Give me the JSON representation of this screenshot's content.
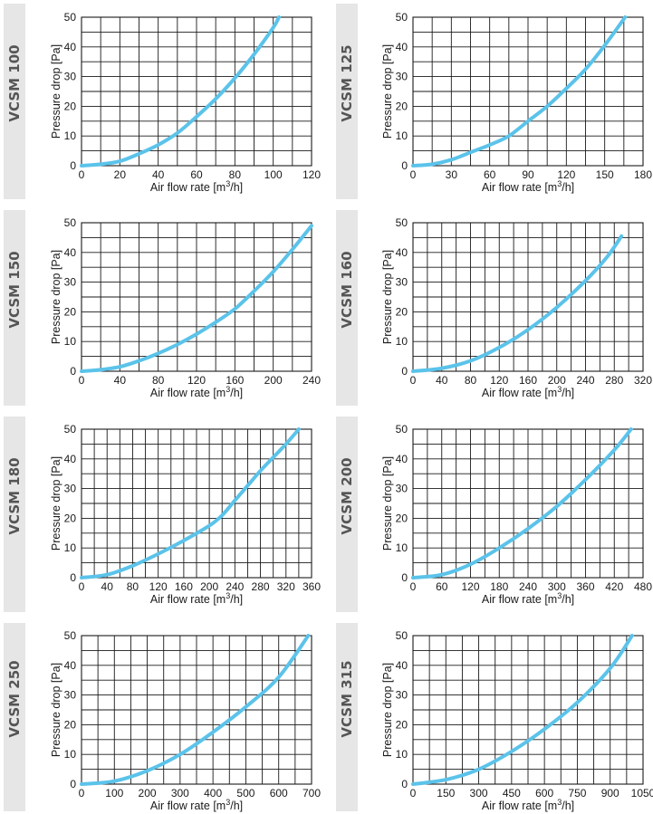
{
  "chart_data": [
    {
      "type": "line",
      "panel_label": "VCSM 100",
      "xlabel": "Air flow rate [m3/h]",
      "ylabel": "Pressure drop [Pa]",
      "xlim": [
        0,
        120
      ],
      "ylim": [
        0,
        50
      ],
      "xticks": [
        0,
        20,
        40,
        60,
        80,
        100,
        120
      ],
      "x_grid_step": 10,
      "yticks": [
        0,
        10,
        20,
        30,
        40,
        50
      ],
      "y_grid_step": 5,
      "grid": true,
      "series": [
        {
          "color": "#5bc3ea",
          "x": [
            0,
            10,
            20,
            30,
            40,
            50,
            60,
            70,
            80,
            90,
            100,
            103
          ],
          "y": [
            0,
            0.5,
            1.5,
            4,
            7,
            11,
            16.5,
            22.5,
            29.5,
            37.5,
            46.5,
            50
          ]
        }
      ]
    },
    {
      "type": "line",
      "panel_label": "VCSM 125",
      "xlabel": "Air flow rate [m3/h]",
      "ylabel": "Pressure drop [Pa]",
      "xlim": [
        0,
        180
      ],
      "ylim": [
        0,
        50
      ],
      "xticks": [
        0,
        30,
        60,
        90,
        120,
        150,
        180
      ],
      "x_grid_step": 15,
      "yticks": [
        0,
        10,
        20,
        30,
        40,
        50
      ],
      "y_grid_step": 5,
      "grid": true,
      "series": [
        {
          "color": "#5bc3ea",
          "x": [
            0,
            15,
            30,
            45,
            60,
            75,
            90,
            105,
            120,
            135,
            150,
            166
          ],
          "y": [
            0,
            0.5,
            2,
            4.5,
            7,
            10,
            15,
            20,
            26,
            32.5,
            40.5,
            50
          ]
        }
      ]
    },
    {
      "type": "line",
      "panel_label": "VCSM 150",
      "xlabel": "Air flow rate [m3/h]",
      "ylabel": "Pressure drop [Pa]",
      "xlim": [
        0,
        240
      ],
      "ylim": [
        0,
        50
      ],
      "xticks": [
        0,
        40,
        80,
        120,
        160,
        200,
        240
      ],
      "x_grid_step": 20,
      "yticks": [
        0,
        10,
        20,
        30,
        40,
        50
      ],
      "y_grid_step": 5,
      "grid": true,
      "series": [
        {
          "color": "#5bc3ea",
          "x": [
            0,
            20,
            40,
            60,
            80,
            100,
            120,
            140,
            160,
            180,
            200,
            220,
            240
          ],
          "y": [
            0,
            0.5,
            1.5,
            3.5,
            6,
            9,
            12.5,
            16.5,
            21,
            27,
            33.5,
            41,
            49
          ]
        }
      ]
    },
    {
      "type": "line",
      "panel_label": "VCSM 160",
      "xlabel": "Air flow rate [m3/h]",
      "ylabel": "Pressure drop [Pa]",
      "xlim": [
        0,
        320
      ],
      "ylim": [
        0,
        50
      ],
      "xticks": [
        0,
        40,
        80,
        120,
        160,
        200,
        240,
        280,
        320
      ],
      "x_grid_step": 20,
      "yticks": [
        0,
        10,
        20,
        30,
        40,
        50
      ],
      "y_grid_step": 5,
      "grid": true,
      "series": [
        {
          "color": "#5bc3ea",
          "x": [
            0,
            40,
            80,
            120,
            160,
            200,
            240,
            270,
            290
          ],
          "y": [
            0,
            1,
            3.5,
            8,
            14,
            21.5,
            30.5,
            38.5,
            45.5
          ]
        }
      ]
    },
    {
      "type": "line",
      "panel_label": "VCSM 180",
      "xlabel": "Air flow rate [m3/h]",
      "ylabel": "Pressure drop [Pa]",
      "xlim": [
        0,
        360
      ],
      "ylim": [
        0,
        50
      ],
      "xticks": [
        0,
        40,
        80,
        120,
        160,
        200,
        240,
        280,
        320,
        360
      ],
      "x_grid_step": 20,
      "yticks": [
        0,
        10,
        20,
        30,
        40,
        50
      ],
      "y_grid_step": 5,
      "grid": true,
      "series": [
        {
          "color": "#5bc3ea",
          "x": [
            0,
            40,
            80,
            120,
            160,
            200,
            220,
            240,
            260,
            280,
            300,
            320,
            340
          ],
          "y": [
            0,
            1,
            4,
            8,
            12.5,
            17.5,
            21,
            26,
            31,
            36,
            40.5,
            45,
            50
          ]
        }
      ]
    },
    {
      "type": "line",
      "panel_label": "VCSM 200",
      "xlabel": "Air flow rate [m3/h]",
      "ylabel": "Pressure drop [Pa]",
      "xlim": [
        0,
        480
      ],
      "ylim": [
        0,
        50
      ],
      "xticks": [
        0,
        60,
        120,
        180,
        240,
        300,
        360,
        420,
        480
      ],
      "x_grid_step": 30,
      "yticks": [
        0,
        10,
        20,
        30,
        40,
        50
      ],
      "y_grid_step": 5,
      "grid": true,
      "series": [
        {
          "color": "#5bc3ea",
          "x": [
            0,
            60,
            120,
            180,
            240,
            300,
            360,
            420,
            455
          ],
          "y": [
            0,
            1,
            4.5,
            10,
            16.5,
            24,
            33,
            43,
            50
          ]
        }
      ]
    },
    {
      "type": "line",
      "panel_label": "VCSM 250",
      "xlabel": "Air flow rate [m3/h]",
      "ylabel": "Pressure drop [Pa]",
      "xlim": [
        0,
        700
      ],
      "ylim": [
        0,
        50
      ],
      "xticks": [
        0,
        100,
        200,
        300,
        400,
        500,
        600,
        700
      ],
      "x_grid_step": 50,
      "yticks": [
        0,
        10,
        20,
        30,
        40,
        50
      ],
      "y_grid_step": 5,
      "grid": true,
      "series": [
        {
          "color": "#5bc3ea",
          "x": [
            0,
            100,
            200,
            300,
            400,
            500,
            600,
            690
          ],
          "y": [
            0,
            1,
            4.5,
            10,
            17.5,
            26,
            36,
            50
          ]
        }
      ]
    },
    {
      "type": "line",
      "panel_label": "VCSM 315",
      "xlabel": "Air flow rate [m3/h]",
      "ylabel": "Pressure drop [Pa]",
      "xlim": [
        0,
        1050
      ],
      "ylim": [
        0,
        50
      ],
      "xticks": [
        0,
        150,
        300,
        450,
        600,
        750,
        900,
        1050
      ],
      "x_grid_step": 75,
      "yticks": [
        0,
        10,
        20,
        30,
        40,
        50
      ],
      "y_grid_step": 5,
      "grid": true,
      "series": [
        {
          "color": "#5bc3ea",
          "x": [
            0,
            150,
            300,
            450,
            600,
            750,
            900,
            1000
          ],
          "y": [
            0,
            1.5,
            5,
            11,
            18.5,
            27.5,
            39,
            50
          ]
        }
      ]
    }
  ]
}
